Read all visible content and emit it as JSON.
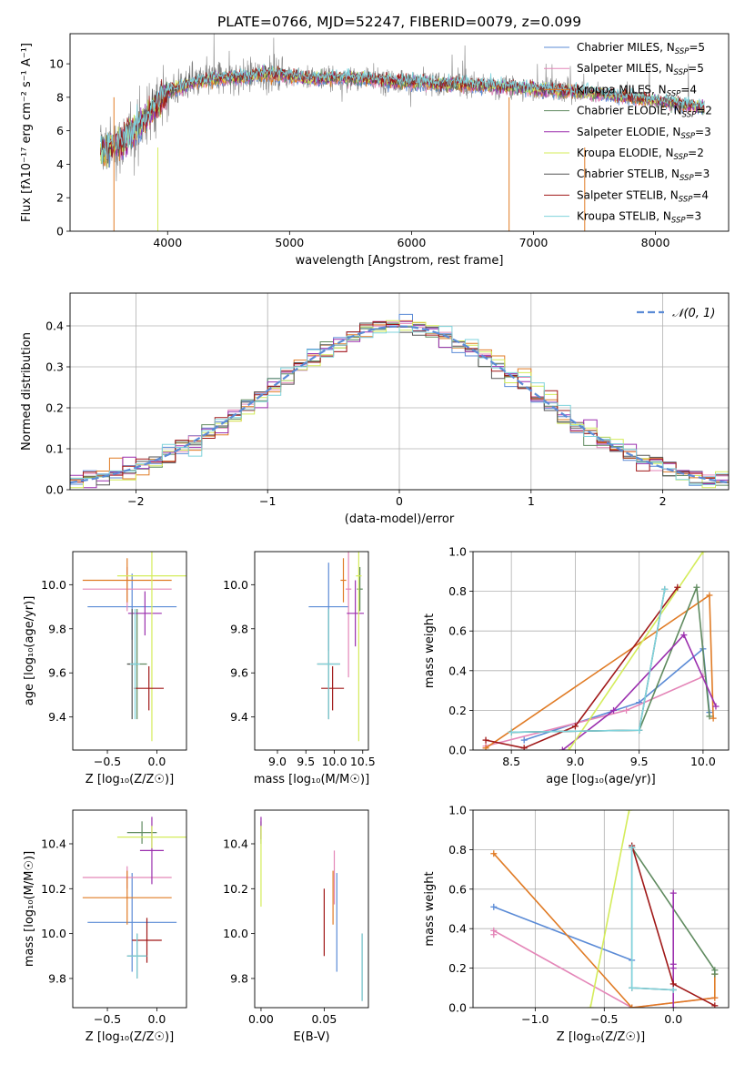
{
  "chart_data": [
    {
      "type": "line",
      "title": "PLATE=0766, MJD=52247, FIBERID=0079, z=0.099",
      "xlabel": "wavelength [Angstrom, rest frame]",
      "ylabel": "Flux [fλ10⁻¹⁷ erg cm⁻² s⁻¹ A⁻¹]",
      "xlim": [
        3200,
        8600
      ],
      "ylim": [
        0,
        11.8
      ],
      "xticks": [
        4000,
        5000,
        6000,
        7000,
        8000
      ],
      "yticks": [
        0,
        2,
        4,
        6,
        8,
        10
      ],
      "legend_position": "right",
      "legend": [
        {
          "label": "Chabrier MILES, N",
          "sub": "SSP",
          "tail": "=5",
          "color": "#5b8bd6"
        },
        {
          "label": "Salpeter MILES, N",
          "sub": "SSP",
          "tail": "=5",
          "color": "#e486b8"
        },
        {
          "label": "Kroupa MILES, N",
          "sub": "SSP",
          "tail": "=4",
          "color": "#e07b25"
        },
        {
          "label": "Chabrier ELODIE, N",
          "sub": "SSP",
          "tail": "=2",
          "color": "#5f8a5f"
        },
        {
          "label": "Salpeter ELODIE, N",
          "sub": "SSP",
          "tail": "=3",
          "color": "#9b2fae"
        },
        {
          "label": "Kroupa ELODIE, N",
          "sub": "SSP",
          "tail": "=2",
          "color": "#d4ec5a"
        },
        {
          "label": "Chabrier STELIB, N",
          "sub": "SSP",
          "tail": "=3",
          "color": "#555555"
        },
        {
          "label": "Salpeter STELIB, N",
          "sub": "SSP",
          "tail": "=4",
          "color": "#a01818"
        },
        {
          "label": "Kroupa STELIB, N",
          "sub": "SSP",
          "tail": "=3",
          "color": "#7fd3dc"
        }
      ],
      "data_color": "#808080",
      "spectrum_anchors": {
        "x": [
          3450,
          3600,
          3700,
          3800,
          3900,
          4000,
          4200,
          4400,
          4600,
          4800,
          5000,
          5200,
          5400,
          5600,
          5800,
          6000,
          6200,
          6400,
          6600,
          6800,
          7000,
          7200,
          7400,
          7600,
          7800,
          8000,
          8200,
          8400
        ],
        "y": [
          4.8,
          5.2,
          5.8,
          6.6,
          7.5,
          8.3,
          8.9,
          9.1,
          9.2,
          9.4,
          9.3,
          9.1,
          9.2,
          9.1,
          9.0,
          8.9,
          8.8,
          8.8,
          8.7,
          8.6,
          8.5,
          8.4,
          8.3,
          8.2,
          8.0,
          7.8,
          7.6,
          7.4
        ]
      }
    },
    {
      "type": "histogram",
      "xlabel": "(data-model)/error",
      "ylabel": "Normed distribution",
      "xlim": [
        -2.5,
        2.5
      ],
      "ylim": [
        0,
        0.48
      ],
      "xticks": [
        -2,
        -1,
        0,
        1,
        2
      ],
      "yticks": [
        0.0,
        0.1,
        0.2,
        0.3,
        0.4
      ],
      "legend_position": "top-right",
      "reference_label": "𝒩(0, 1)",
      "reference_color": "#5b8bd6",
      "bin_width": 0.1,
      "grid": true
    },
    {
      "type": "scatter",
      "xlabel": "Z [log₁₀(Z/Z☉)]",
      "ylabel": "age  [log₁₀(age/yr)]",
      "xlim": [
        -0.85,
        0.3
      ],
      "ylim": [
        9.25,
        10.15
      ],
      "xticks": [
        -0.5,
        0.0
      ],
      "yticks": [
        9.4,
        9.6,
        9.8,
        10.0
      ],
      "points": [
        {
          "x": -0.25,
          "y": 9.9,
          "xerr": 0.45,
          "yerr": 0.15,
          "color": "#5b8bd6"
        },
        {
          "x": -0.3,
          "y": 9.98,
          "xerr": 0.45,
          "yerr": 0.1,
          "color": "#e486b8"
        },
        {
          "x": -0.3,
          "y": 10.02,
          "xerr": 0.45,
          "yerr": 0.1,
          "color": "#e07b25"
        },
        {
          "x": -0.2,
          "y": 9.64,
          "xerr": 0.1,
          "yerr": 0.25,
          "color": "#5f8a5f"
        },
        {
          "x": -0.12,
          "y": 9.87,
          "xerr": 0.17,
          "yerr": 0.1,
          "color": "#9b2fae"
        },
        {
          "x": -0.05,
          "y": 10.04,
          "xerr": 0.35,
          "yerr": 0.75,
          "color": "#d4ec5a"
        },
        {
          "x": -0.25,
          "y": 9.64,
          "xerr": 0.05,
          "yerr": 0.25,
          "color": "#555555"
        },
        {
          "x": -0.08,
          "y": 9.53,
          "xerr": 0.15,
          "yerr": 0.1,
          "color": "#a01818"
        },
        {
          "x": -0.22,
          "y": 9.64,
          "xerr": 0.05,
          "yerr": 0.25,
          "color": "#7fd3dc"
        }
      ]
    },
    {
      "type": "scatter",
      "xlabel": "mass [log₁₀(M/M☉)]",
      "ylabel": "",
      "xlim": [
        8.6,
        10.6
      ],
      "ylim": [
        9.25,
        10.15
      ],
      "xticks": [
        9.0,
        9.5,
        10.0,
        10.5
      ],
      "yticks": [
        9.4,
        9.6,
        9.8,
        10.0
      ],
      "points": [
        {
          "x": 9.9,
          "y": 9.9,
          "xerr": 0.35,
          "yerr": 0.2,
          "color": "#5b8bd6"
        },
        {
          "x": 10.25,
          "y": 9.98,
          "xerr": 0.05,
          "yerr": 0.4,
          "color": "#e486b8"
        },
        {
          "x": 10.16,
          "y": 10.02,
          "xerr": 0.05,
          "yerr": 0.1,
          "color": "#e07b25"
        },
        {
          "x": 10.45,
          "y": 9.98,
          "xerr": 0.05,
          "yerr": 0.1,
          "color": "#5f8a5f"
        },
        {
          "x": 10.37,
          "y": 9.87,
          "xerr": 0.15,
          "yerr": 0.15,
          "color": "#9b2fae"
        },
        {
          "x": 10.43,
          "y": 10.04,
          "xerr": 0.05,
          "yerr": 0.75,
          "color": "#d4ec5a"
        },
        {
          "x": 9.9,
          "y": 9.64,
          "xerr": 0.2,
          "yerr": 0.25,
          "color": "#555555"
        },
        {
          "x": 9.97,
          "y": 9.53,
          "xerr": 0.2,
          "yerr": 0.1,
          "color": "#a01818"
        },
        {
          "x": 9.9,
          "y": 9.64,
          "xerr": 0.2,
          "yerr": 0.25,
          "color": "#7fd3dc"
        }
      ]
    },
    {
      "type": "line",
      "xlabel": "age  [log₁₀(age/yr)]",
      "ylabel": "mass weight",
      "xlim": [
        8.2,
        10.2
      ],
      "ylim": [
        0,
        1.0
      ],
      "xticks": [
        8.5,
        9.0,
        9.5,
        10.0
      ],
      "yticks": [
        0.0,
        0.2,
        0.4,
        0.6,
        0.8,
        1.0
      ],
      "grid": true,
      "series": [
        {
          "color": "#5b8bd6",
          "x": [
            8.6,
            9.5,
            10.0,
            10.05
          ],
          "y": [
            0.05,
            0.24,
            0.51,
            0.19
          ]
        },
        {
          "color": "#e486b8",
          "x": [
            8.3,
            9.4,
            10.0
          ],
          "y": [
            0.02,
            0.2,
            0.37
          ]
        },
        {
          "color": "#e07b25",
          "x": [
            8.3,
            10.05,
            10.08
          ],
          "y": [
            0.01,
            0.78,
            0.16
          ]
        },
        {
          "color": "#5f8a5f",
          "x": [
            8.5,
            9.5,
            9.95,
            10.05
          ],
          "y": [
            0.09,
            0.1,
            0.82,
            0.17
          ]
        },
        {
          "color": "#9b2fae",
          "x": [
            8.9,
            9.3,
            9.85,
            10.1
          ],
          "y": [
            0.0,
            0.2,
            0.58,
            0.22
          ]
        },
        {
          "color": "#d4ec5a",
          "x": [
            8.95,
            10.0
          ],
          "y": [
            0.0,
            1.0
          ]
        },
        {
          "color": "#555555",
          "x": [
            8.5,
            9.5,
            9.7
          ],
          "y": [
            0.09,
            0.1,
            0.81
          ]
        },
        {
          "color": "#a01818",
          "x": [
            8.3,
            8.6,
            9.0,
            9.8
          ],
          "y": [
            0.05,
            0.01,
            0.12,
            0.82
          ]
        },
        {
          "color": "#7fd3dc",
          "x": [
            8.5,
            9.5,
            9.7
          ],
          "y": [
            0.09,
            0.1,
            0.81
          ]
        }
      ]
    },
    {
      "type": "scatter",
      "xlabel": "Z [log₁₀(Z/Z☉)]",
      "ylabel": "mass [log₁₀(M/M☉)]",
      "xlim": [
        -0.85,
        0.3
      ],
      "ylim": [
        9.67,
        10.55
      ],
      "xticks": [
        -0.5,
        0.0
      ],
      "yticks": [
        9.8,
        10.0,
        10.2,
        10.4
      ],
      "points": [
        {
          "x": -0.25,
          "y": 10.05,
          "xerr": 0.45,
          "yerr": 0.22,
          "color": "#5b8bd6"
        },
        {
          "x": -0.3,
          "y": 10.25,
          "xerr": 0.45,
          "yerr": 0.05,
          "color": "#e486b8"
        },
        {
          "x": -0.3,
          "y": 10.16,
          "xerr": 0.45,
          "yerr": 0.12,
          "color": "#e07b25"
        },
        {
          "x": -0.15,
          "y": 10.45,
          "xerr": 0.15,
          "yerr": 0.05,
          "color": "#5f8a5f"
        },
        {
          "x": -0.05,
          "y": 10.37,
          "xerr": 0.12,
          "yerr": 0.15,
          "color": "#9b2fae"
        },
        {
          "x": -0.05,
          "y": 10.43,
          "xerr": 0.35,
          "yerr": 0.05,
          "color": "#d4ec5a"
        },
        {
          "x": -0.2,
          "y": 9.9,
          "xerr": 0.1,
          "yerr": 0.1,
          "color": "#555555"
        },
        {
          "x": -0.1,
          "y": 9.97,
          "xerr": 0.15,
          "yerr": 0.1,
          "color": "#a01818"
        },
        {
          "x": -0.2,
          "y": 9.9,
          "xerr": 0.1,
          "yerr": 0.1,
          "color": "#7fd3dc"
        }
      ]
    },
    {
      "type": "scatter",
      "xlabel": "E(B-V)",
      "ylabel": "",
      "xlim": [
        -0.005,
        0.085
      ],
      "ylim": [
        9.67,
        10.55
      ],
      "xticks": [
        0.0,
        0.05
      ],
      "yticks": [
        9.8,
        10.0,
        10.2,
        10.4
      ],
      "points": [
        {
          "x": 0.06,
          "y": 10.05,
          "yerr": 0.22,
          "color": "#5b8bd6"
        },
        {
          "x": 0.058,
          "y": 10.25,
          "yerr": 0.12,
          "color": "#e486b8"
        },
        {
          "x": 0.057,
          "y": 10.16,
          "yerr": 0.12,
          "color": "#e07b25"
        },
        {
          "x": 0.0,
          "y": 10.45,
          "yerr": 0.05,
          "color": "#5f8a5f"
        },
        {
          "x": 0.0,
          "y": 10.47,
          "yerr": 0.05,
          "color": "#9b2fae"
        },
        {
          "x": 0.0,
          "y": 10.3,
          "yerr": 0.18,
          "color": "#d4ec5a"
        },
        {
          "x": 0.08,
          "y": 9.85,
          "yerr": 0.15,
          "color": "#555555"
        },
        {
          "x": 0.05,
          "y": 10.05,
          "yerr": 0.15,
          "color": "#a01818"
        },
        {
          "x": 0.08,
          "y": 9.85,
          "yerr": 0.15,
          "color": "#7fd3dc"
        }
      ]
    },
    {
      "type": "line",
      "xlabel": "Z [log₁₀(Z/Z☉)]",
      "ylabel": "mass weight",
      "xlim": [
        -1.45,
        0.4
      ],
      "ylim": [
        0,
        1.0
      ],
      "xticks": [
        -1.0,
        -0.5,
        0.0
      ],
      "yticks": [
        0.0,
        0.2,
        0.4,
        0.6,
        0.8,
        1.0
      ],
      "grid": true,
      "series": [
        {
          "color": "#5b8bd6",
          "x": [
            -1.3,
            -0.3
          ],
          "y": [
            0.51,
            0.24
          ]
        },
        {
          "color": "#e486b8",
          "x": [
            -1.3,
            -1.3,
            -0.3,
            0.3
          ],
          "y": [
            0.37,
            0.39,
            0.0,
            0.05
          ]
        },
        {
          "color": "#e07b25",
          "x": [
            -1.3,
            -0.3,
            0.3,
            0.3
          ],
          "y": [
            0.78,
            0.0,
            0.05,
            0.17
          ]
        },
        {
          "color": "#5f8a5f",
          "x": [
            -0.3,
            0.3,
            0.3
          ],
          "y": [
            0.81,
            0.19,
            0.17
          ]
        },
        {
          "color": "#9b2fae",
          "x": [
            0.0,
            0.0,
            0.0,
            0.0
          ],
          "y": [
            0.58,
            0.22,
            0.2,
            0.0
          ]
        },
        {
          "color": "#d4ec5a",
          "x": [
            -0.32,
            -0.6
          ],
          "y": [
            1.0,
            0.0
          ]
        },
        {
          "color": "#555555",
          "x": [
            -0.3,
            -0.3,
            0.0
          ],
          "y": [
            0.81,
            0.1,
            0.09
          ]
        },
        {
          "color": "#a01818",
          "x": [
            -0.3,
            0.0,
            0.3
          ],
          "y": [
            0.82,
            0.12,
            0.01
          ]
        },
        {
          "color": "#7fd3dc",
          "x": [
            -0.3,
            -0.3,
            0.0
          ],
          "y": [
            0.81,
            0.1,
            0.09
          ]
        }
      ]
    }
  ]
}
